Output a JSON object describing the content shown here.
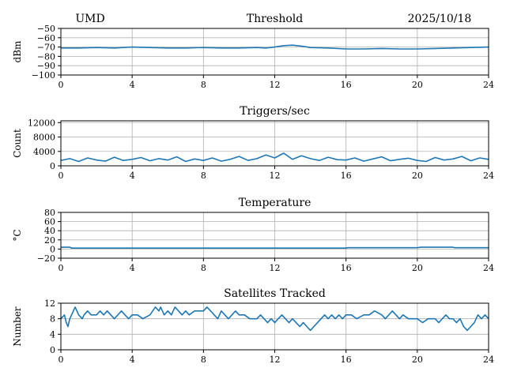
{
  "header": {
    "site": "UMD",
    "date": "2025/10/18"
  },
  "chart_data": [
    {
      "type": "line",
      "title": "Threshold",
      "xlabel": "",
      "ylabel": "dBm",
      "xlim": [
        0,
        24
      ],
      "ylim": [
        -100,
        -50
      ],
      "x_ticks": [
        0,
        4,
        8,
        12,
        16,
        20,
        24
      ],
      "y_ticks": [
        -100,
        -90,
        -80,
        -70,
        -60,
        -50
      ],
      "y_tick_labels": [
        "−100",
        "−90",
        "−80",
        "−70",
        "−60",
        "−50"
      ],
      "grid": true,
      "color": "#1f77b4",
      "series": [
        {
          "x": [
            0,
            1,
            2,
            3,
            4,
            5,
            6,
            7,
            8,
            9,
            10,
            11,
            11.5,
            12,
            12.5,
            13,
            13.5,
            14,
            15,
            16,
            17,
            18,
            19,
            20,
            21,
            22,
            23,
            24
          ],
          "y": [
            -71,
            -71,
            -70.5,
            -71,
            -70,
            -70.5,
            -71,
            -71,
            -70.5,
            -71,
            -71,
            -70.5,
            -71,
            -70,
            -68.5,
            -68,
            -69,
            -70.5,
            -71,
            -72,
            -72,
            -71.5,
            -72,
            -72,
            -71.5,
            -71,
            -70.5,
            -70
          ]
        }
      ]
    },
    {
      "type": "line",
      "title": "Triggers/sec",
      "xlabel": "",
      "ylabel": "Count",
      "xlim": [
        0,
        24
      ],
      "ylim": [
        0,
        12500
      ],
      "x_ticks": [
        0,
        4,
        8,
        12,
        16,
        20,
        24
      ],
      "y_ticks": [
        0,
        4000,
        8000,
        12000
      ],
      "y_tick_labels": [
        "0",
        "4000",
        "8000",
        "12000"
      ],
      "grid": true,
      "color": "#1f77b4",
      "series": [
        {
          "x": [
            0,
            0.5,
            1,
            1.5,
            2,
            2.5,
            3,
            3.5,
            4,
            4.5,
            5,
            5.5,
            6,
            6.5,
            7,
            7.5,
            8,
            8.5,
            9,
            9.5,
            10,
            10.5,
            11,
            11.5,
            12,
            12.5,
            13,
            13.5,
            14,
            14.5,
            15,
            15.5,
            16,
            16.5,
            17,
            17.5,
            18,
            18.5,
            19,
            19.5,
            20,
            20.5,
            21,
            21.5,
            22,
            22.5,
            23,
            23.5,
            24
          ],
          "y": [
            1500,
            2000,
            1200,
            2200,
            1600,
            1300,
            2400,
            1500,
            1800,
            2300,
            1400,
            2000,
            1600,
            2500,
            1200,
            1900,
            1500,
            2200,
            1300,
            1800,
            2600,
            1500,
            2000,
            3000,
            2200,
            3500,
            1800,
            2800,
            2000,
            1500,
            2400,
            1700,
            1600,
            2200,
            1300,
            1900,
            2500,
            1400,
            1800,
            2100,
            1500,
            1200,
            2300,
            1600,
            1900,
            2600,
            1400,
            2200,
            1800
          ]
        }
      ]
    },
    {
      "type": "line",
      "title": "Temperature",
      "xlabel": "",
      "ylabel": "°C",
      "xlim": [
        0,
        24
      ],
      "ylim": [
        -20,
        80
      ],
      "x_ticks": [
        0,
        4,
        8,
        12,
        16,
        20,
        24
      ],
      "y_ticks": [
        -20,
        0,
        20,
        40,
        60,
        80
      ],
      "y_tick_labels": [
        "−20",
        "0",
        "20",
        "40",
        "60",
        "80"
      ],
      "grid": true,
      "color": "#1f77b4",
      "series": [
        {
          "x": [
            0,
            0.5,
            0.6,
            4,
            8,
            12,
            16,
            16.1,
            20,
            20.2,
            22,
            22.1,
            24
          ],
          "y": [
            4,
            4,
            2,
            2,
            2,
            2,
            2,
            3,
            3,
            4,
            4,
            3,
            3
          ]
        }
      ]
    },
    {
      "type": "line",
      "title": "Satellites Tracked",
      "xlabel": "",
      "ylabel": "Number",
      "xlim": [
        0,
        24
      ],
      "ylim": [
        0,
        12
      ],
      "x_ticks": [
        0,
        4,
        8,
        12,
        16,
        20,
        24
      ],
      "y_ticks": [
        0,
        4,
        8,
        12
      ],
      "y_tick_labels": [
        "0",
        "4",
        "8",
        "12"
      ],
      "grid": true,
      "color": "#1f77b4",
      "series": [
        {
          "x": [
            0,
            0.2,
            0.3,
            0.4,
            0.5,
            0.6,
            0.7,
            0.8,
            0.9,
            1.0,
            1.2,
            1.3,
            1.5,
            1.7,
            2.0,
            2.2,
            2.4,
            2.6,
            2.8,
            3.0,
            3.2,
            3.4,
            3.6,
            3.8,
            4.0,
            4.3,
            4.6,
            5.0,
            5.3,
            5.5,
            5.6,
            5.8,
            6.0,
            6.2,
            6.4,
            6.6,
            6.8,
            7.0,
            7.2,
            7.5,
            8.0,
            8.2,
            8.4,
            8.6,
            8.8,
            9.0,
            9.2,
            9.4,
            9.6,
            9.8,
            10.0,
            10.3,
            10.6,
            11.0,
            11.2,
            11.4,
            11.6,
            11.8,
            12.0,
            12.2,
            12.4,
            12.6,
            12.8,
            13.0,
            13.2,
            13.4,
            13.6,
            13.8,
            14.0,
            14.2,
            14.4,
            14.6,
            14.8,
            15.0,
            15.2,
            15.4,
            15.6,
            15.8,
            16.0,
            16.3,
            16.6,
            17.0,
            17.3,
            17.6,
            18.0,
            18.2,
            18.4,
            18.6,
            18.8,
            19.0,
            19.2,
            19.5,
            19.8,
            20.0,
            20.3,
            20.6,
            21.0,
            21.2,
            21.4,
            21.6,
            21.8,
            22.0,
            22.2,
            22.4,
            22.6,
            22.8,
            23.0,
            23.2,
            23.4,
            23.6,
            23.8,
            24.0
          ],
          "y": [
            8,
            9,
            7,
            6,
            8,
            9,
            10,
            11,
            10,
            9,
            8,
            9,
            10,
            9,
            9,
            10,
            9,
            10,
            9,
            8,
            9,
            10,
            9,
            8,
            9,
            9,
            8,
            9,
            11,
            10,
            11,
            9,
            10,
            9,
            11,
            10,
            9,
            10,
            9,
            10,
            10,
            11,
            10,
            9,
            8,
            10,
            9,
            8,
            9,
            10,
            9,
            9,
            8,
            8,
            9,
            8,
            7,
            8,
            7,
            8,
            9,
            8,
            7,
            8,
            7,
            6,
            7,
            6,
            5,
            6,
            7,
            8,
            9,
            8,
            9,
            8,
            9,
            8,
            9,
            9,
            8,
            9,
            9,
            10,
            9,
            8,
            9,
            10,
            9,
            8,
            9,
            8,
            8,
            8,
            7,
            8,
            8,
            7,
            8,
            9,
            8,
            8,
            7,
            8,
            6,
            5,
            6,
            7,
            9,
            8,
            9,
            8
          ]
        }
      ]
    }
  ]
}
